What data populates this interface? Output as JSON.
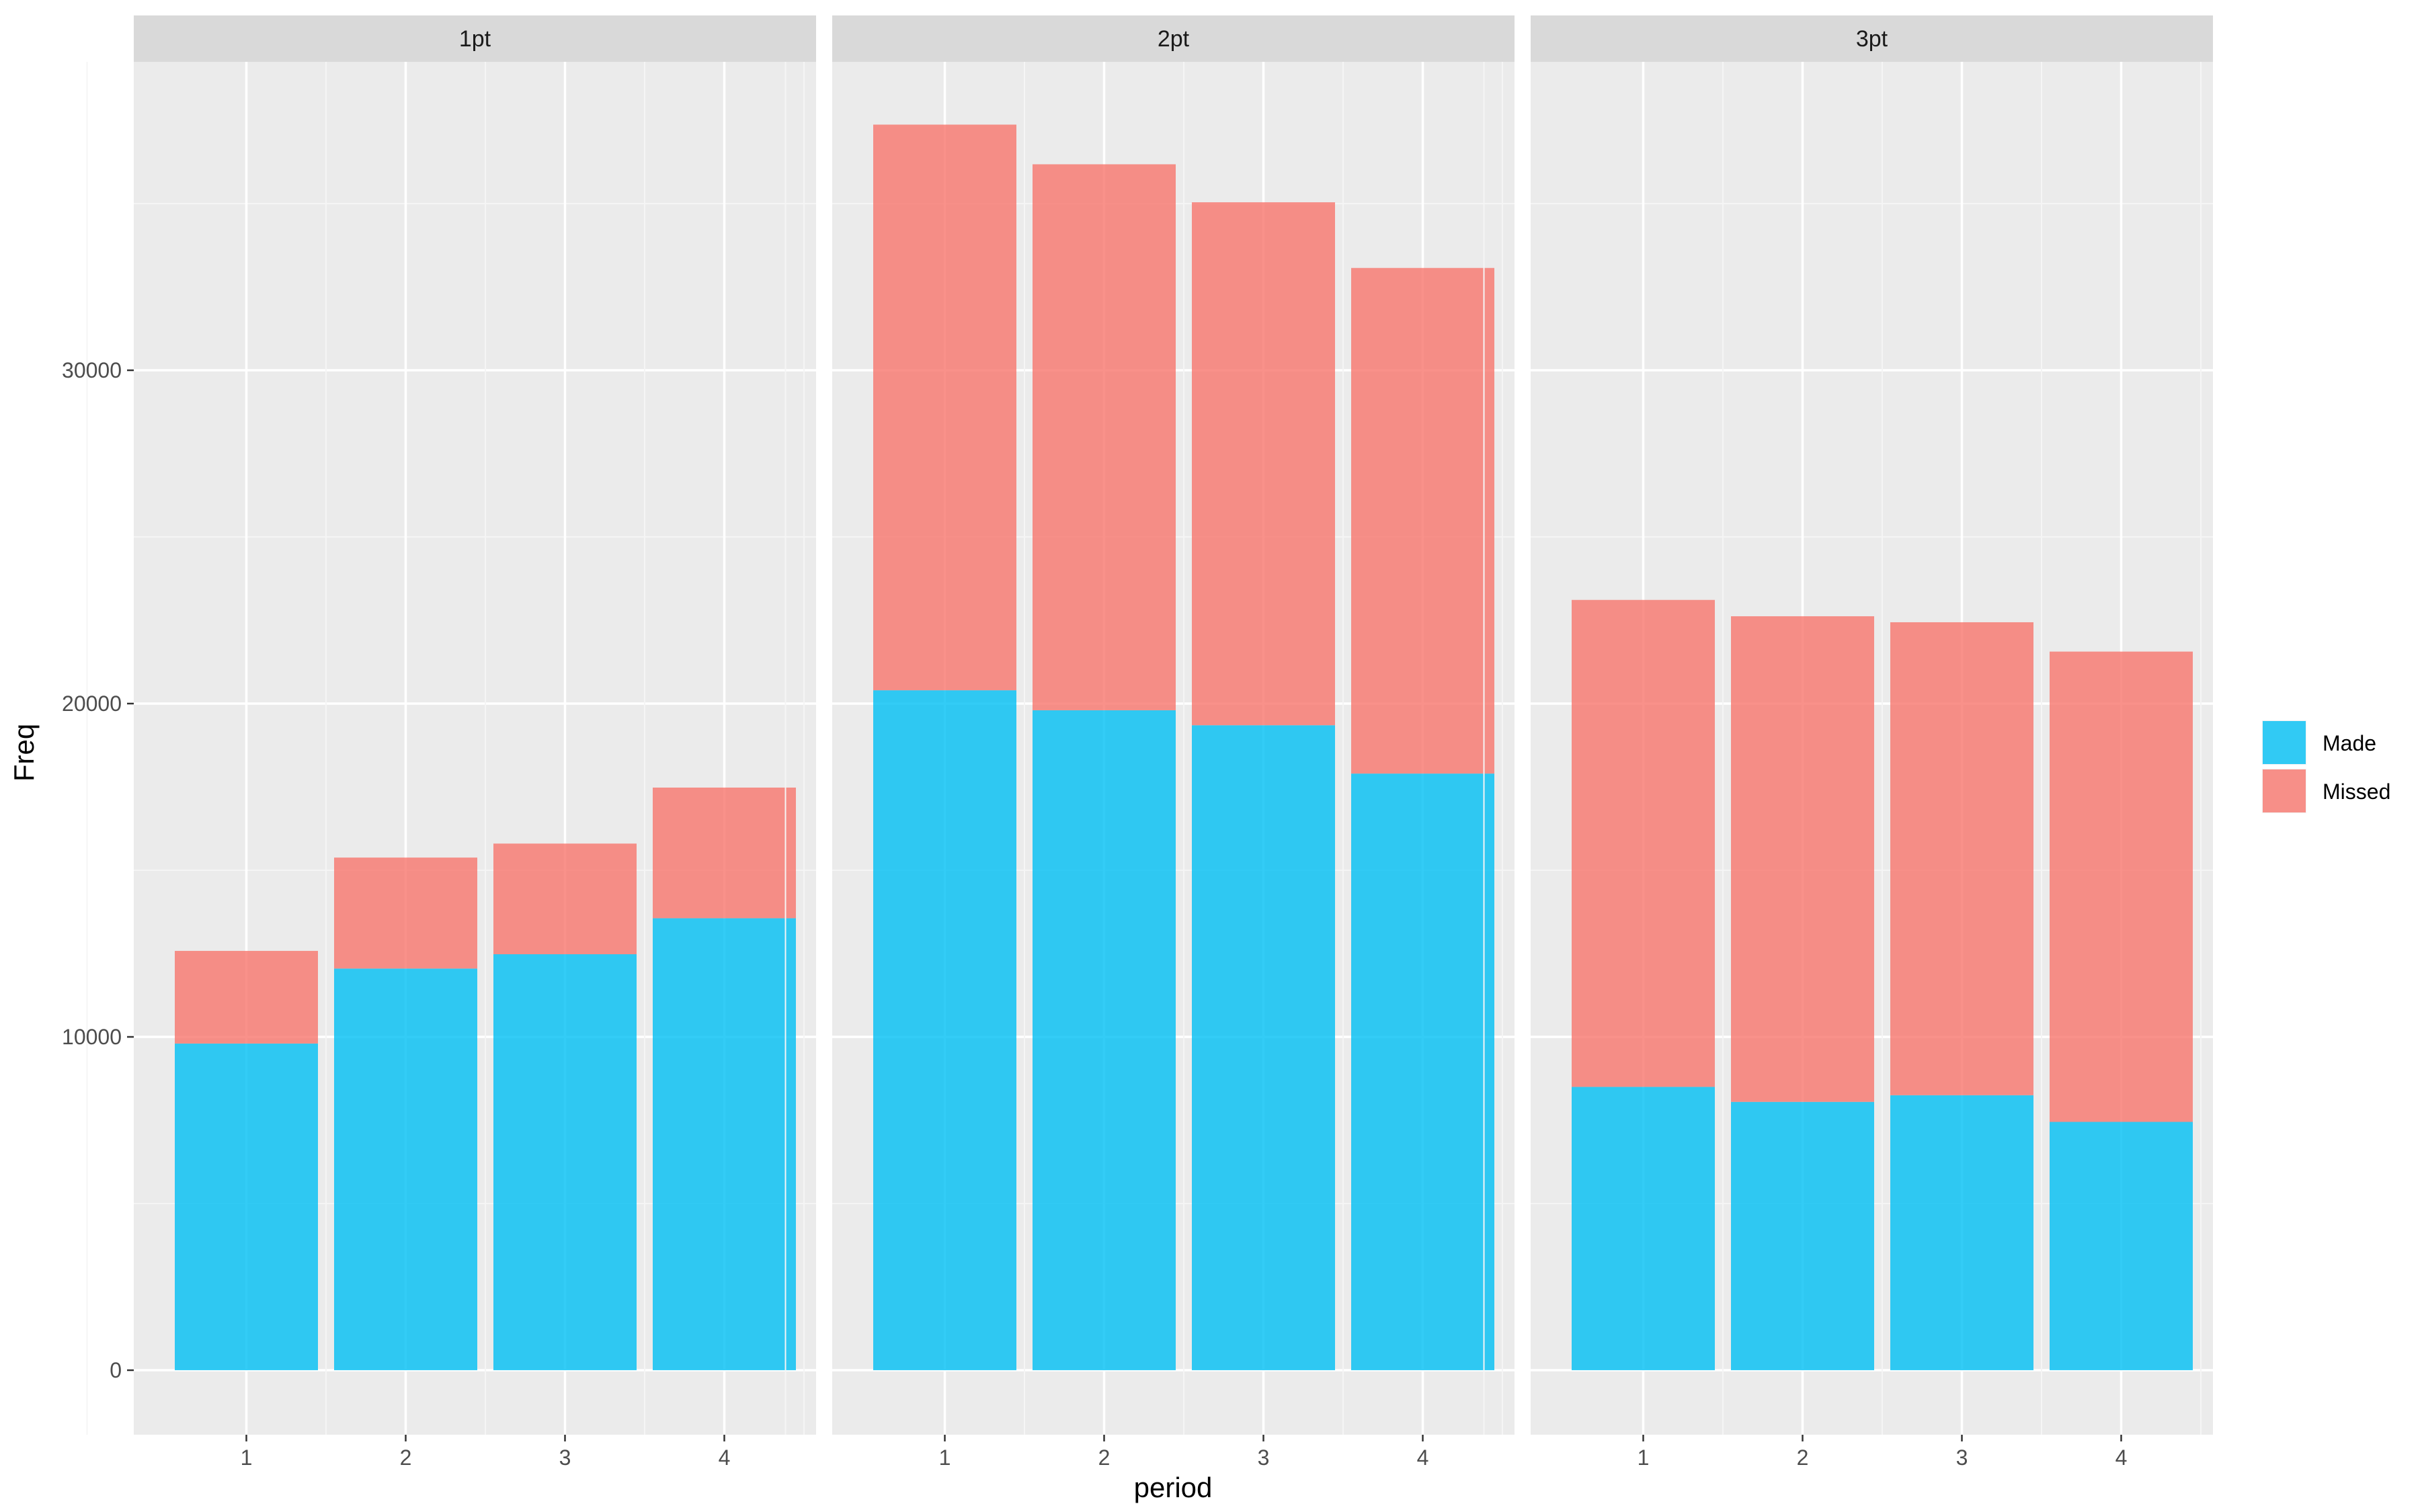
{
  "chart_data": {
    "type": "bar",
    "stacked": true,
    "faceted": true,
    "xlabel": "period",
    "ylabel": "Freq",
    "ylim": [
      0,
      40000
    ],
    "yticks": [
      0,
      10000,
      20000,
      30000
    ],
    "grid": true,
    "legend_position": "right",
    "categories": [
      "1",
      "2",
      "3",
      "4"
    ],
    "series_names": [
      "Made",
      "Missed"
    ],
    "series_colors": {
      "Made": "#00BFF4",
      "Missed": "#F8766D"
    },
    "facets": [
      {
        "label": "1pt",
        "series": [
          {
            "name": "Made",
            "values": [
              9800,
              12050,
              12480,
              13560
            ]
          },
          {
            "name": "Missed",
            "values": [
              2780,
              3330,
              3320,
              3920
            ]
          }
        ]
      },
      {
        "label": "2pt",
        "series": [
          {
            "name": "Made",
            "values": [
              20400,
              19800,
              19350,
              17900
            ]
          },
          {
            "name": "Missed",
            "values": [
              16970,
              16380,
              15690,
              15170
            ]
          }
        ]
      },
      {
        "label": "3pt",
        "series": [
          {
            "name": "Made",
            "values": [
              8500,
              8050,
              8250,
              7450
            ]
          },
          {
            "name": "Missed",
            "values": [
              14610,
              14570,
              14190,
              14110
            ]
          }
        ]
      }
    ]
  },
  "legend": {
    "items": [
      "Made",
      "Missed"
    ]
  }
}
